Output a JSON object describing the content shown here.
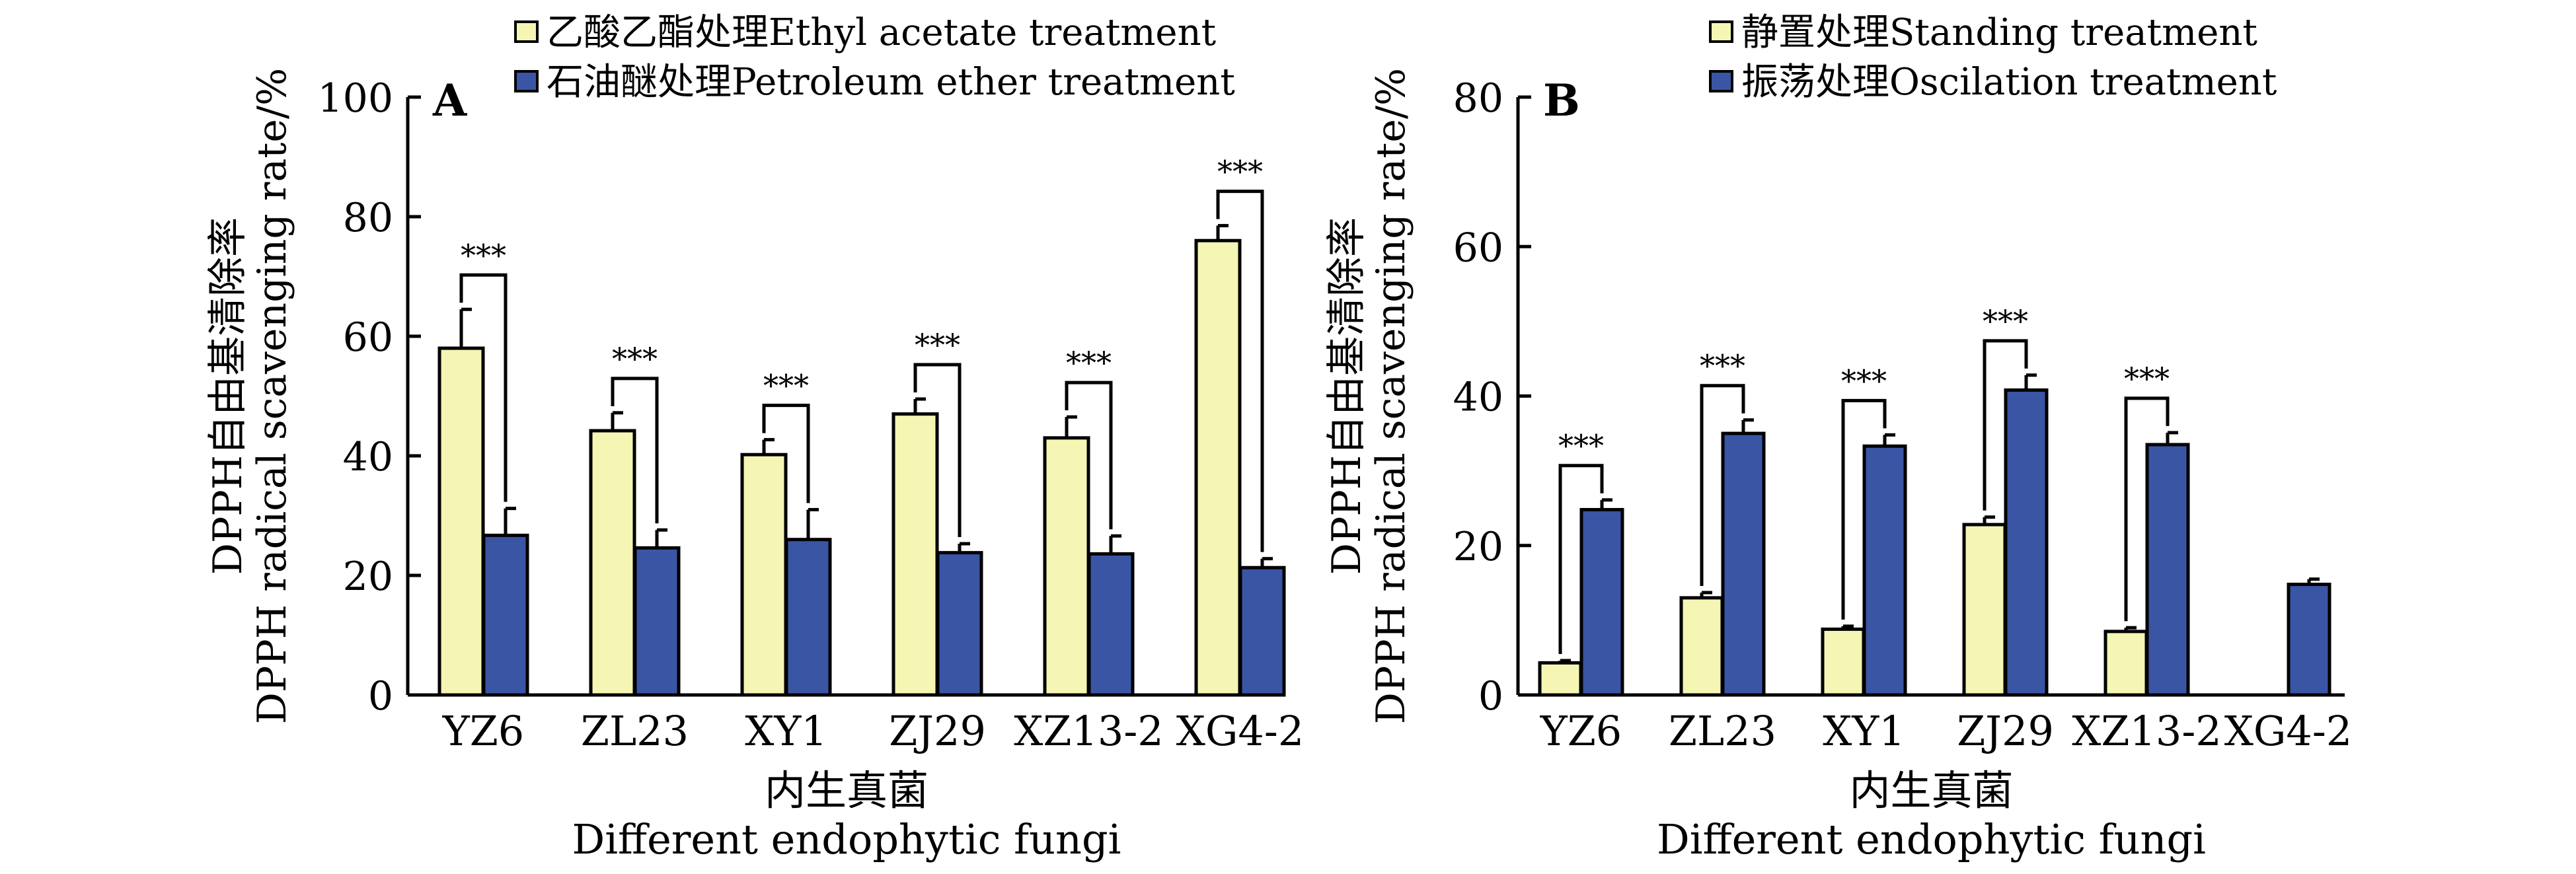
{
  "colors": {
    "series_light": "#f5f5b4",
    "series_dark": "#3a55a4"
  },
  "chart_data": [
    {
      "panel_label": "A",
      "type": "bar",
      "categories": [
        "YZ6",
        "ZL23",
        "XY1",
        "ZJ29",
        "XZ13-2",
        "XG4-2"
      ],
      "series": [
        {
          "name": "乙酸乙酯处理Ethyl acetate treatment",
          "values": [
            58.0,
            44.2,
            40.2,
            47.0,
            43.0,
            76.0
          ],
          "errors": [
            6.5,
            3.0,
            2.5,
            2.5,
            3.5,
            2.5
          ]
        },
        {
          "name": "石油醚处理Petroleum ether treatment",
          "values": [
            26.7,
            24.6,
            26.0,
            23.8,
            23.6,
            21.3
          ],
          "errors": [
            4.5,
            3.0,
            5.0,
            1.5,
            3.0,
            1.5
          ]
        }
      ],
      "significance": [
        "***",
        "***",
        "***",
        "***",
        "***",
        "***"
      ],
      "ylabel_cn": "DPPH自由基清除率",
      "ylabel_en": "DPPH radical scavenging rate/%",
      "xlabel_cn": "内生真菌",
      "xlabel_en": "Different endophytic fungi",
      "ylim": [
        0,
        100
      ],
      "yticks": [
        0,
        20,
        40,
        60,
        80,
        100
      ],
      "legend_position": "top-center"
    },
    {
      "panel_label": "B",
      "type": "bar",
      "categories": [
        "YZ6",
        "ZL23",
        "XY1",
        "ZJ29",
        "XZ13-2",
        "XG4-2"
      ],
      "series": [
        {
          "name": "静置处理Standing treatment",
          "values": [
            4.3,
            13.0,
            8.8,
            22.8,
            8.5,
            0
          ],
          "errors": [
            0.3,
            0.7,
            0.4,
            1.0,
            0.5,
            0
          ]
        },
        {
          "name": "振荡处理Oscilation treatment",
          "values": [
            24.8,
            35.0,
            33.3,
            40.8,
            33.5,
            14.8
          ],
          "errors": [
            1.3,
            1.8,
            1.5,
            2.0,
            1.6,
            0.7
          ]
        }
      ],
      "significance": [
        "***",
        "***",
        "***",
        "***",
        "***",
        ""
      ],
      "ylabel_cn": "DPPH自由基清除率",
      "ylabel_en": "DPPH radical scavenging rate/%",
      "xlabel_cn": "内生真菌",
      "xlabel_en": "Different endophytic fungi",
      "ylim": [
        0,
        80
      ],
      "yticks": [
        0,
        20,
        40,
        60,
        80
      ],
      "legend_position": "top-center"
    }
  ]
}
